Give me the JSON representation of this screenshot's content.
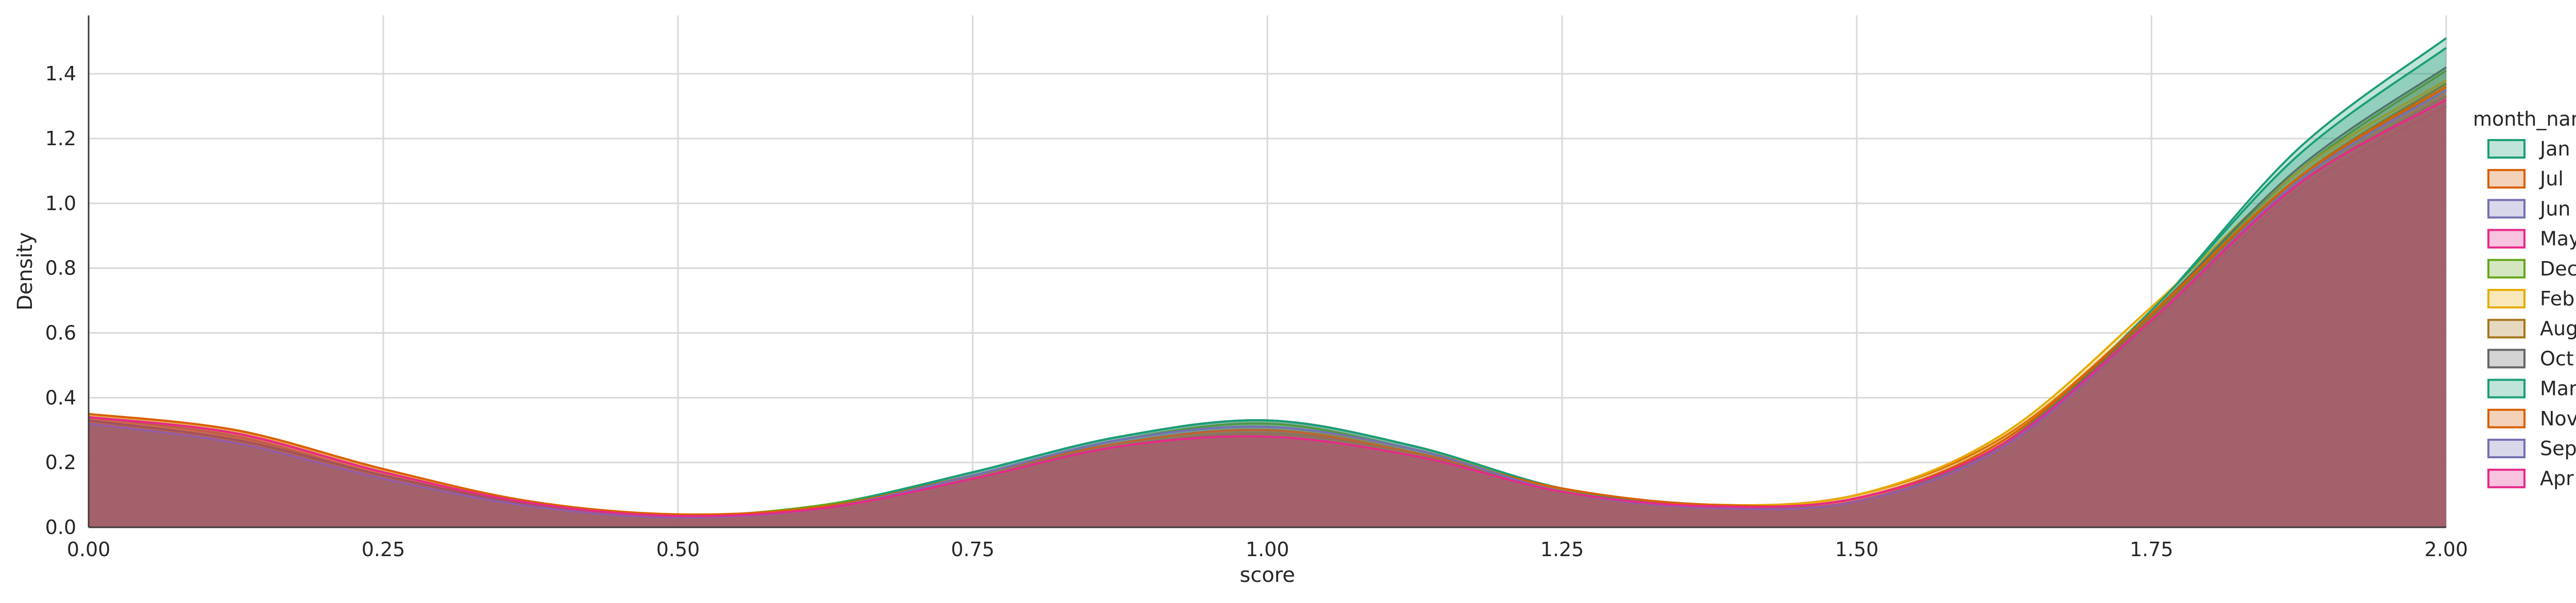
{
  "chart_data": {
    "type": "area",
    "title": "",
    "xlabel": "score",
    "ylabel": "Density",
    "xlim": [
      0.0,
      2.0
    ],
    "ylim": [
      0.0,
      1.58
    ],
    "x_ticks": [
      "0.00",
      "0.25",
      "0.50",
      "0.75",
      "1.00",
      "1.25",
      "1.50",
      "1.75",
      "2.00"
    ],
    "y_ticks": [
      "0.0",
      "0.2",
      "0.4",
      "0.6",
      "0.8",
      "1.0",
      "1.2",
      "1.4"
    ],
    "grid": true,
    "legend": {
      "title": "month_name",
      "position": "right"
    },
    "x": [
      0.0,
      0.125,
      0.25,
      0.375,
      0.5,
      0.625,
      0.75,
      0.875,
      1.0,
      1.125,
      1.25,
      1.375,
      1.5,
      1.625,
      1.75,
      1.875,
      2.0
    ],
    "series": [
      {
        "name": "Jan",
        "color": "#1b9e77",
        "values": [
          0.34,
          0.28,
          0.16,
          0.07,
          0.035,
          0.07,
          0.17,
          0.28,
          0.33,
          0.25,
          0.12,
          0.07,
          0.08,
          0.26,
          0.67,
          1.17,
          1.51
        ]
      },
      {
        "name": "Jul",
        "color": "#d95f02",
        "values": [
          0.35,
          0.3,
          0.18,
          0.08,
          0.04,
          0.06,
          0.15,
          0.25,
          0.29,
          0.23,
          0.12,
          0.07,
          0.1,
          0.28,
          0.66,
          1.08,
          1.35
        ]
      },
      {
        "name": "Jun",
        "color": "#7570b3",
        "values": [
          0.33,
          0.27,
          0.16,
          0.07,
          0.035,
          0.06,
          0.15,
          0.26,
          0.3,
          0.23,
          0.11,
          0.06,
          0.08,
          0.25,
          0.63,
          1.04,
          1.3
        ]
      },
      {
        "name": "May",
        "color": "#e7298a",
        "values": [
          0.34,
          0.29,
          0.17,
          0.075,
          0.035,
          0.06,
          0.15,
          0.25,
          0.29,
          0.23,
          0.11,
          0.065,
          0.09,
          0.26,
          0.64,
          1.06,
          1.33
        ]
      },
      {
        "name": "Dec",
        "color": "#66a61e",
        "values": [
          0.33,
          0.27,
          0.16,
          0.07,
          0.035,
          0.07,
          0.16,
          0.27,
          0.32,
          0.24,
          0.12,
          0.065,
          0.08,
          0.26,
          0.66,
          1.1,
          1.41
        ]
      },
      {
        "name": "Feb",
        "color": "#e6ab02",
        "values": [
          0.35,
          0.3,
          0.18,
          0.08,
          0.04,
          0.065,
          0.16,
          0.26,
          0.3,
          0.24,
          0.12,
          0.07,
          0.1,
          0.29,
          0.68,
          1.1,
          1.38
        ]
      },
      {
        "name": "Aug",
        "color": "#a6761d",
        "values": [
          0.34,
          0.29,
          0.17,
          0.075,
          0.035,
          0.06,
          0.16,
          0.26,
          0.3,
          0.23,
          0.11,
          0.065,
          0.09,
          0.26,
          0.65,
          1.08,
          1.37
        ]
      },
      {
        "name": "Oct",
        "color": "#666666",
        "values": [
          0.33,
          0.27,
          0.16,
          0.07,
          0.035,
          0.065,
          0.17,
          0.28,
          0.33,
          0.25,
          0.12,
          0.065,
          0.08,
          0.26,
          0.66,
          1.11,
          1.42
        ]
      },
      {
        "name": "Mar",
        "color": "#1b9e77",
        "values": [
          0.32,
          0.26,
          0.15,
          0.065,
          0.03,
          0.065,
          0.17,
          0.28,
          0.33,
          0.25,
          0.12,
          0.065,
          0.08,
          0.26,
          0.67,
          1.15,
          1.48
        ]
      },
      {
        "name": "Nov",
        "color": "#d95f02",
        "values": [
          0.35,
          0.3,
          0.18,
          0.08,
          0.04,
          0.065,
          0.16,
          0.26,
          0.3,
          0.23,
          0.12,
          0.07,
          0.09,
          0.27,
          0.66,
          1.08,
          1.36
        ]
      },
      {
        "name": "Sep",
        "color": "#7570b3",
        "values": [
          0.32,
          0.26,
          0.15,
          0.065,
          0.03,
          0.06,
          0.16,
          0.27,
          0.31,
          0.24,
          0.11,
          0.06,
          0.08,
          0.25,
          0.64,
          1.07,
          1.35
        ]
      },
      {
        "name": "Apr",
        "color": "#e7298a",
        "values": [
          0.34,
          0.29,
          0.17,
          0.075,
          0.035,
          0.06,
          0.15,
          0.25,
          0.28,
          0.22,
          0.11,
          0.065,
          0.09,
          0.26,
          0.64,
          1.06,
          1.32
        ]
      }
    ]
  }
}
